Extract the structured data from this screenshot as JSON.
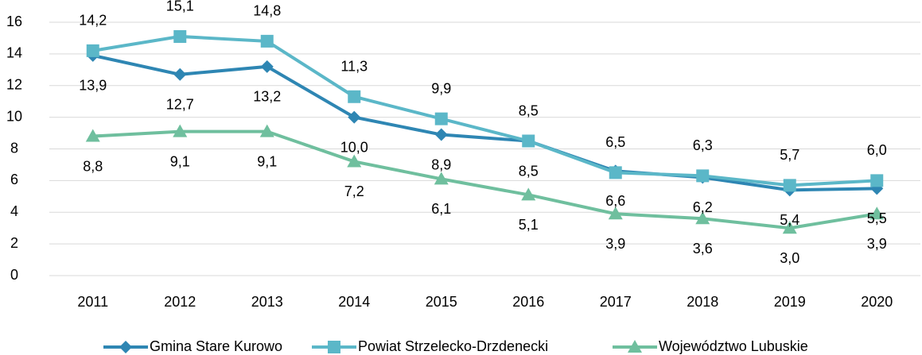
{
  "chart_data": {
    "type": "line",
    "categories": [
      "2011",
      "2012",
      "2013",
      "2014",
      "2015",
      "2016",
      "2017",
      "2018",
      "2019",
      "2020"
    ],
    "series": [
      {
        "name": "Gmina Stare Kurowo",
        "color": "#2e86b3",
        "marker": "diamond",
        "label_position": "below",
        "values": [
          13.9,
          12.7,
          13.2,
          10.0,
          8.9,
          8.5,
          6.6,
          6.2,
          5.4,
          5.5
        ],
        "value_labels": [
          "13,9",
          "12,7",
          "13,2",
          "10,0",
          "8,9",
          "8,5",
          "6,6",
          "6,2",
          "5,4",
          "5,5"
        ]
      },
      {
        "name": "Powiat Strzelecko-Drzdenecki",
        "color": "#5bb7c8",
        "marker": "square",
        "label_position": "above",
        "values": [
          14.2,
          15.1,
          14.8,
          11.3,
          9.9,
          8.5,
          6.5,
          6.3,
          5.7,
          6.0
        ],
        "value_labels": [
          "14,2",
          "15,1",
          "14,8",
          "11,3",
          "9,9",
          "8,5",
          "6,5",
          "6,3",
          "5,7",
          "6,0"
        ]
      },
      {
        "name": "Województwo Lubuskie",
        "color": "#6fbf9e",
        "marker": "triangle",
        "label_position": "below",
        "values": [
          8.8,
          9.1,
          9.1,
          7.2,
          6.1,
          5.1,
          3.9,
          3.6,
          3.0,
          3.9
        ],
        "value_labels": [
          "8,8",
          "9,1",
          "9,1",
          "7,2",
          "6,1",
          "5,1",
          "3,9",
          "3,6",
          "3,0",
          "3,9"
        ]
      }
    ],
    "ylim": [
      0,
      16
    ],
    "yticks": [
      0,
      2,
      4,
      6,
      8,
      10,
      12,
      14,
      16
    ],
    "grid": true,
    "legend": "bottom"
  }
}
